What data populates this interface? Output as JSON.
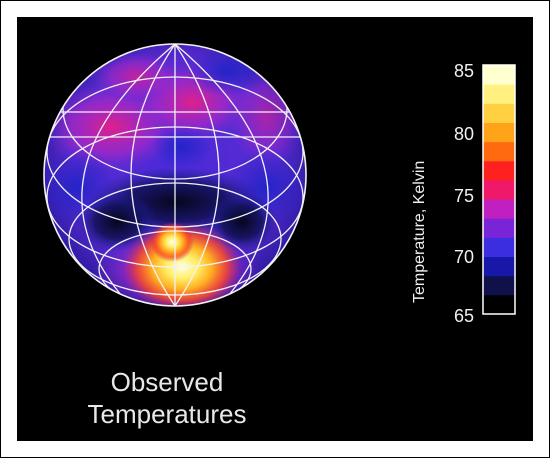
{
  "caption": {
    "line1": "Observed",
    "line2": "Temperatures"
  },
  "colorbar": {
    "title": "Temperature, Kelvin",
    "ticks": [
      "85",
      "80",
      "75",
      "70",
      "65"
    ],
    "min": 65,
    "max": 85,
    "colors": [
      "#000000",
      "#10104a",
      "#1818a8",
      "#3a2ee0",
      "#7a24d8",
      "#c020c0",
      "#f01868",
      "#ff2020",
      "#ff6a10",
      "#ffa418",
      "#ffd040",
      "#fff080",
      "#ffffd0"
    ]
  },
  "frame_color": "#000000",
  "background_color": "#000000"
}
